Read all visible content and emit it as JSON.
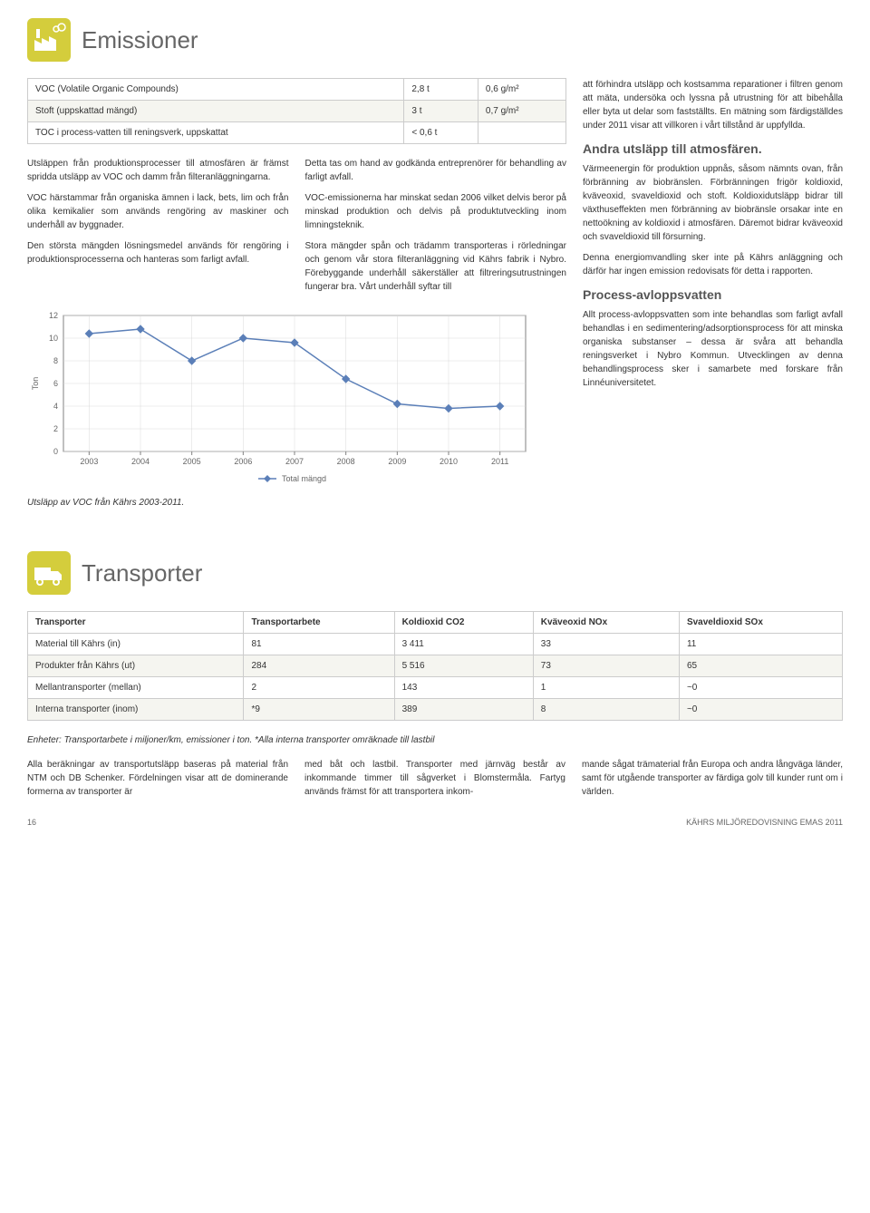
{
  "emissioner": {
    "title": "Emissioner",
    "table": {
      "rows": [
        [
          "VOC (Volatile Organic Compounds)",
          "2,8 t",
          "0,6 g/m²"
        ],
        [
          "Stoft (uppskattad mängd)",
          "3 t",
          "0,7 g/m²"
        ],
        [
          "TOC i process-vatten till reningsverk, uppskattat",
          "< 0,6 t",
          ""
        ]
      ]
    },
    "col1": {
      "p1": "Utsläppen från produktionsprocesser till atmosfären är främst spridda utsläpp av VOC och damm från filteranläggningarna.",
      "p2": "VOC härstammar från organiska ämnen i lack, bets, lim och från olika kemikalier som används rengöring av maskiner och underhåll av byggnader.",
      "p3": "Den största mängden lösningsmedel används för rengöring i produktionsprocesserna och hanteras som farligt avfall."
    },
    "chart": {
      "type": "line",
      "years": [
        "2003",
        "2004",
        "2005",
        "2006",
        "2007",
        "2008",
        "2009",
        "2010",
        "2011"
      ],
      "values": [
        10.4,
        10.8,
        8.0,
        10.0,
        9.6,
        6.4,
        4.2,
        3.8,
        4.0
      ],
      "ylim": [
        0,
        12
      ],
      "ytick_step": 2,
      "ylabel": "Ton",
      "legend": "Total mängd",
      "line_color": "#5b7fb8",
      "marker_color": "#5b7fb8",
      "grid_color": "#d9d9d9",
      "background": "#ffffff",
      "axis_color": "#808080",
      "font_size": 9
    },
    "chart_caption": "Utsläpp av VOC från Kährs 2003-2011.",
    "col2": {
      "p1": "Detta tas om hand av godkända entreprenörer för behandling av farligt avfall.",
      "p2": "VOC-emissionerna har minskat sedan 2006 vilket delvis beror på minskad produktion och delvis på produktutveckling inom limningsteknik.",
      "p3": "Stora mängder spån och trädamm transporteras i rörledningar och genom vår stora filteranläggning vid Kährs fabrik i Nybro. Förebyggande underhåll säkerställer att filtreringsutrustningen fungerar bra. Vårt underhåll syftar till"
    },
    "col3": {
      "p1": "att förhindra utsläpp och kostsamma reparationer i filtren genom att mäta, undersöka och lyssna på utrustning för att bibehålla eller byta ut delar som fastställts. En mätning som färdigställdes under 2011 visar att villkoren i vårt tillstånd är uppfyllda.",
      "h1": "Andra utsläpp till atmosfären.",
      "p2": "Värmeenergin för produktion uppnås, såsom nämnts ovan, från förbränning av biobränslen. Förbränningen frigör koldioxid, kväveoxid, svaveldioxid och stoft. Koldioxidutsläpp bidrar till växthuseffekten men förbränning av biobränsle orsakar inte en nettoökning av koldioxid i atmosfären. Däremot bidrar kväveoxid och svaveldioxid till försurning.",
      "p3": "Denna energiomvandling sker inte på Kährs anläggning och därför har ingen emission redovisats för detta i rapporten.",
      "h2": "Process-avloppsvatten",
      "p4": "Allt process-avloppsvatten som inte behandlas som farligt avfall behandlas i en sedimentering/adsorptionsprocess för att minska organiska substanser – dessa är svåra att behandla reningsverket i Nybro Kommun. Utvecklingen av denna behandlingsprocess sker i samarbete med forskare från Linnéuniversitetet."
    }
  },
  "transporter": {
    "title": "Transporter",
    "table": {
      "headers": [
        "Transporter",
        "Transportarbete",
        "Koldioxid CO2",
        "Kväveoxid NOx",
        "Svaveldioxid SOx"
      ],
      "rows": [
        [
          "Material till Kährs (in)",
          "81",
          "3 411",
          "33",
          "11"
        ],
        [
          "Produkter från Kährs (ut)",
          "284",
          "5 516",
          "73",
          "65"
        ],
        [
          "Mellantransporter (mellan)",
          "2",
          "143",
          "1",
          "~0"
        ],
        [
          "Interna transporter (inom)",
          "*9",
          "389",
          "8",
          "~0"
        ]
      ]
    },
    "note": "Enheter: Transportarbete i miljoner/km, emissioner i ton. *Alla interna transporter omräknade till lastbil",
    "paras": {
      "p1": "Alla beräkningar av transportutsläpp baseras på material från NTM och DB Schenker. Fördelningen visar att de dominerande formerna av transporter är",
      "p2": "med båt och lastbil. Transporter med järnväg består av inkommande timmer till sågverket i Blomstermåla. Fartyg används främst för att transportera inkom-",
      "p3": "mande sågat trämaterial från Europa och andra långväga länder, samt för utgående transporter av färdiga golv till kunder runt om i världen."
    }
  },
  "footer": {
    "page": "16",
    "doc": "KÄHRS MILJÖREDOVISNING EMAS 2011"
  }
}
